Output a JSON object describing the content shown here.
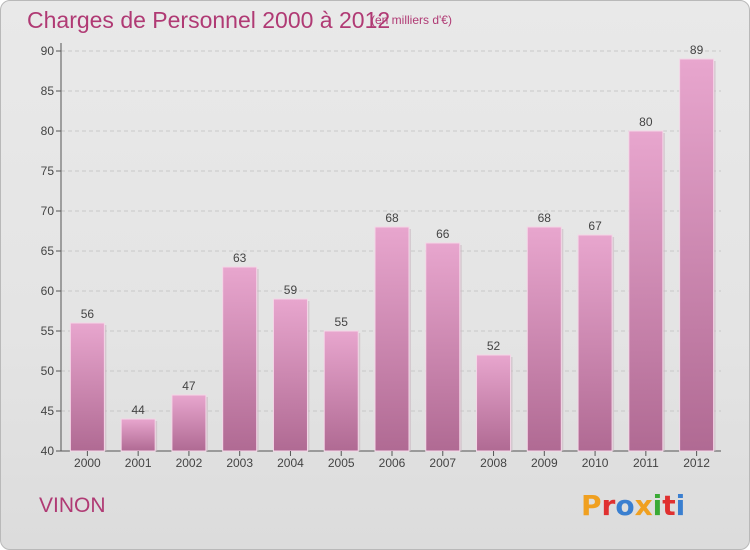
{
  "header": {
    "title": "Charges de Personnel 2000 à 2012",
    "subtitle": "(en milliers d'€)"
  },
  "footer": {
    "commune": "VINON",
    "logo_text": "Proxiti"
  },
  "colors": {
    "accent": "#b03a74",
    "bar_top": "#e8a6ce",
    "bar_bottom": "#b06a93",
    "logo_letters": [
      "#f0a020",
      "#e03030",
      "#3a7fd0",
      "#f0a020",
      "#3aaa35",
      "#e03030",
      "#3a7fd0"
    ]
  },
  "chart_data": {
    "type": "bar",
    "categories": [
      "2000",
      "2001",
      "2002",
      "2003",
      "2004",
      "2005",
      "2006",
      "2007",
      "2008",
      "2009",
      "2010",
      "2011",
      "2012"
    ],
    "values": [
      56,
      44,
      47,
      63,
      59,
      55,
      68,
      66,
      52,
      68,
      67,
      80,
      89
    ],
    "ylim": [
      40,
      90
    ],
    "yticks": [
      40,
      45,
      50,
      55,
      60,
      65,
      70,
      75,
      80,
      85,
      90
    ],
    "grid": true,
    "data_labels": true
  }
}
